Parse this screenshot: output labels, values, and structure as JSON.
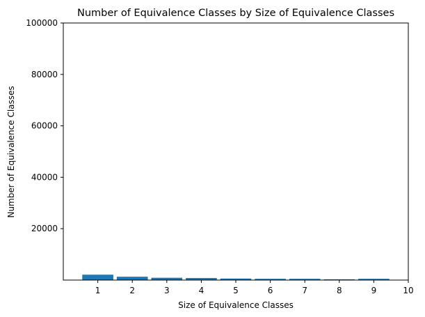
{
  "chart_data": {
    "type": "bar",
    "title": "Number of Equivalence Classes by Size of Equivalence Classes",
    "xlabel": "Size of Equivalence Classes",
    "ylabel": "Number of Equivalence Classes",
    "categories": [
      1,
      2,
      3,
      4,
      5,
      6,
      7,
      8,
      9
    ],
    "values": [
      2100,
      1300,
      900,
      800,
      600,
      500,
      500,
      300,
      500
    ],
    "xlim": [
      0,
      10
    ],
    "ylim": [
      0,
      100000
    ],
    "xticks": [
      1,
      2,
      3,
      4,
      5,
      6,
      7,
      8,
      9,
      10
    ],
    "yticks": [
      20000,
      40000,
      60000,
      80000,
      100000
    ],
    "bar_color": "#1f77b4",
    "grid": false,
    "legend": false
  }
}
